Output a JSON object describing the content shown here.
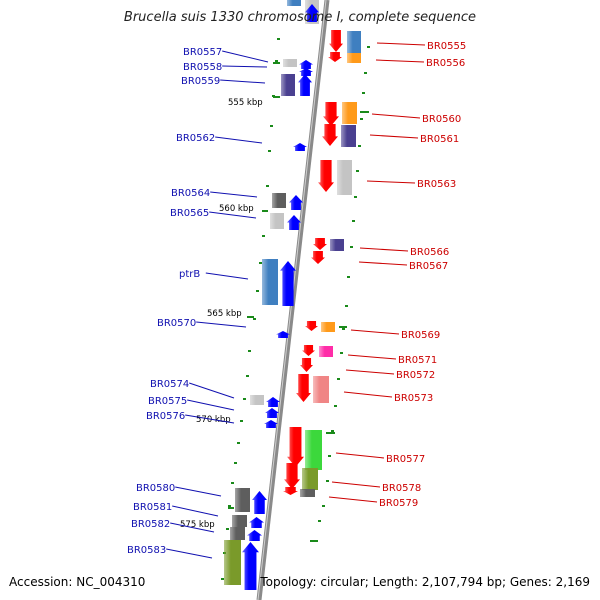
{
  "title": "Brucella suis 1330 chromosome I, complete sequence",
  "accession": "Accession: NC_004310",
  "topology": "Topology: circular; Length: 2,107,794 bp; Genes: 2,169",
  "colors": {
    "backbone": "#8a8a8a",
    "tick": "#1a8a1a",
    "left_label": "#1010b0",
    "right_label": "#cc0000",
    "forward_gene": "#0000ff",
    "reverse_gene": "#ff0000"
  },
  "kbp_markers": [
    "555 kbp",
    "560 kbp",
    "565 kbp",
    "570 kbp",
    "575 kbp"
  ],
  "left_genes": [
    "BR0557",
    "BR0558",
    "BR0559",
    "BR0562",
    "BR0564",
    "BR0565",
    "ptrB",
    "BR0570",
    "BR0574",
    "BR0575",
    "BR0576",
    "BR0580",
    "BR0581",
    "BR0582",
    "BR0583"
  ],
  "right_genes": [
    "BR0555",
    "BR0556",
    "BR0560",
    "BR0561",
    "BR0563",
    "BR0566",
    "BR0567",
    "BR0569",
    "BR0571",
    "BR0572",
    "BR0573",
    "BR0577",
    "BR0578",
    "BR0579"
  ]
}
